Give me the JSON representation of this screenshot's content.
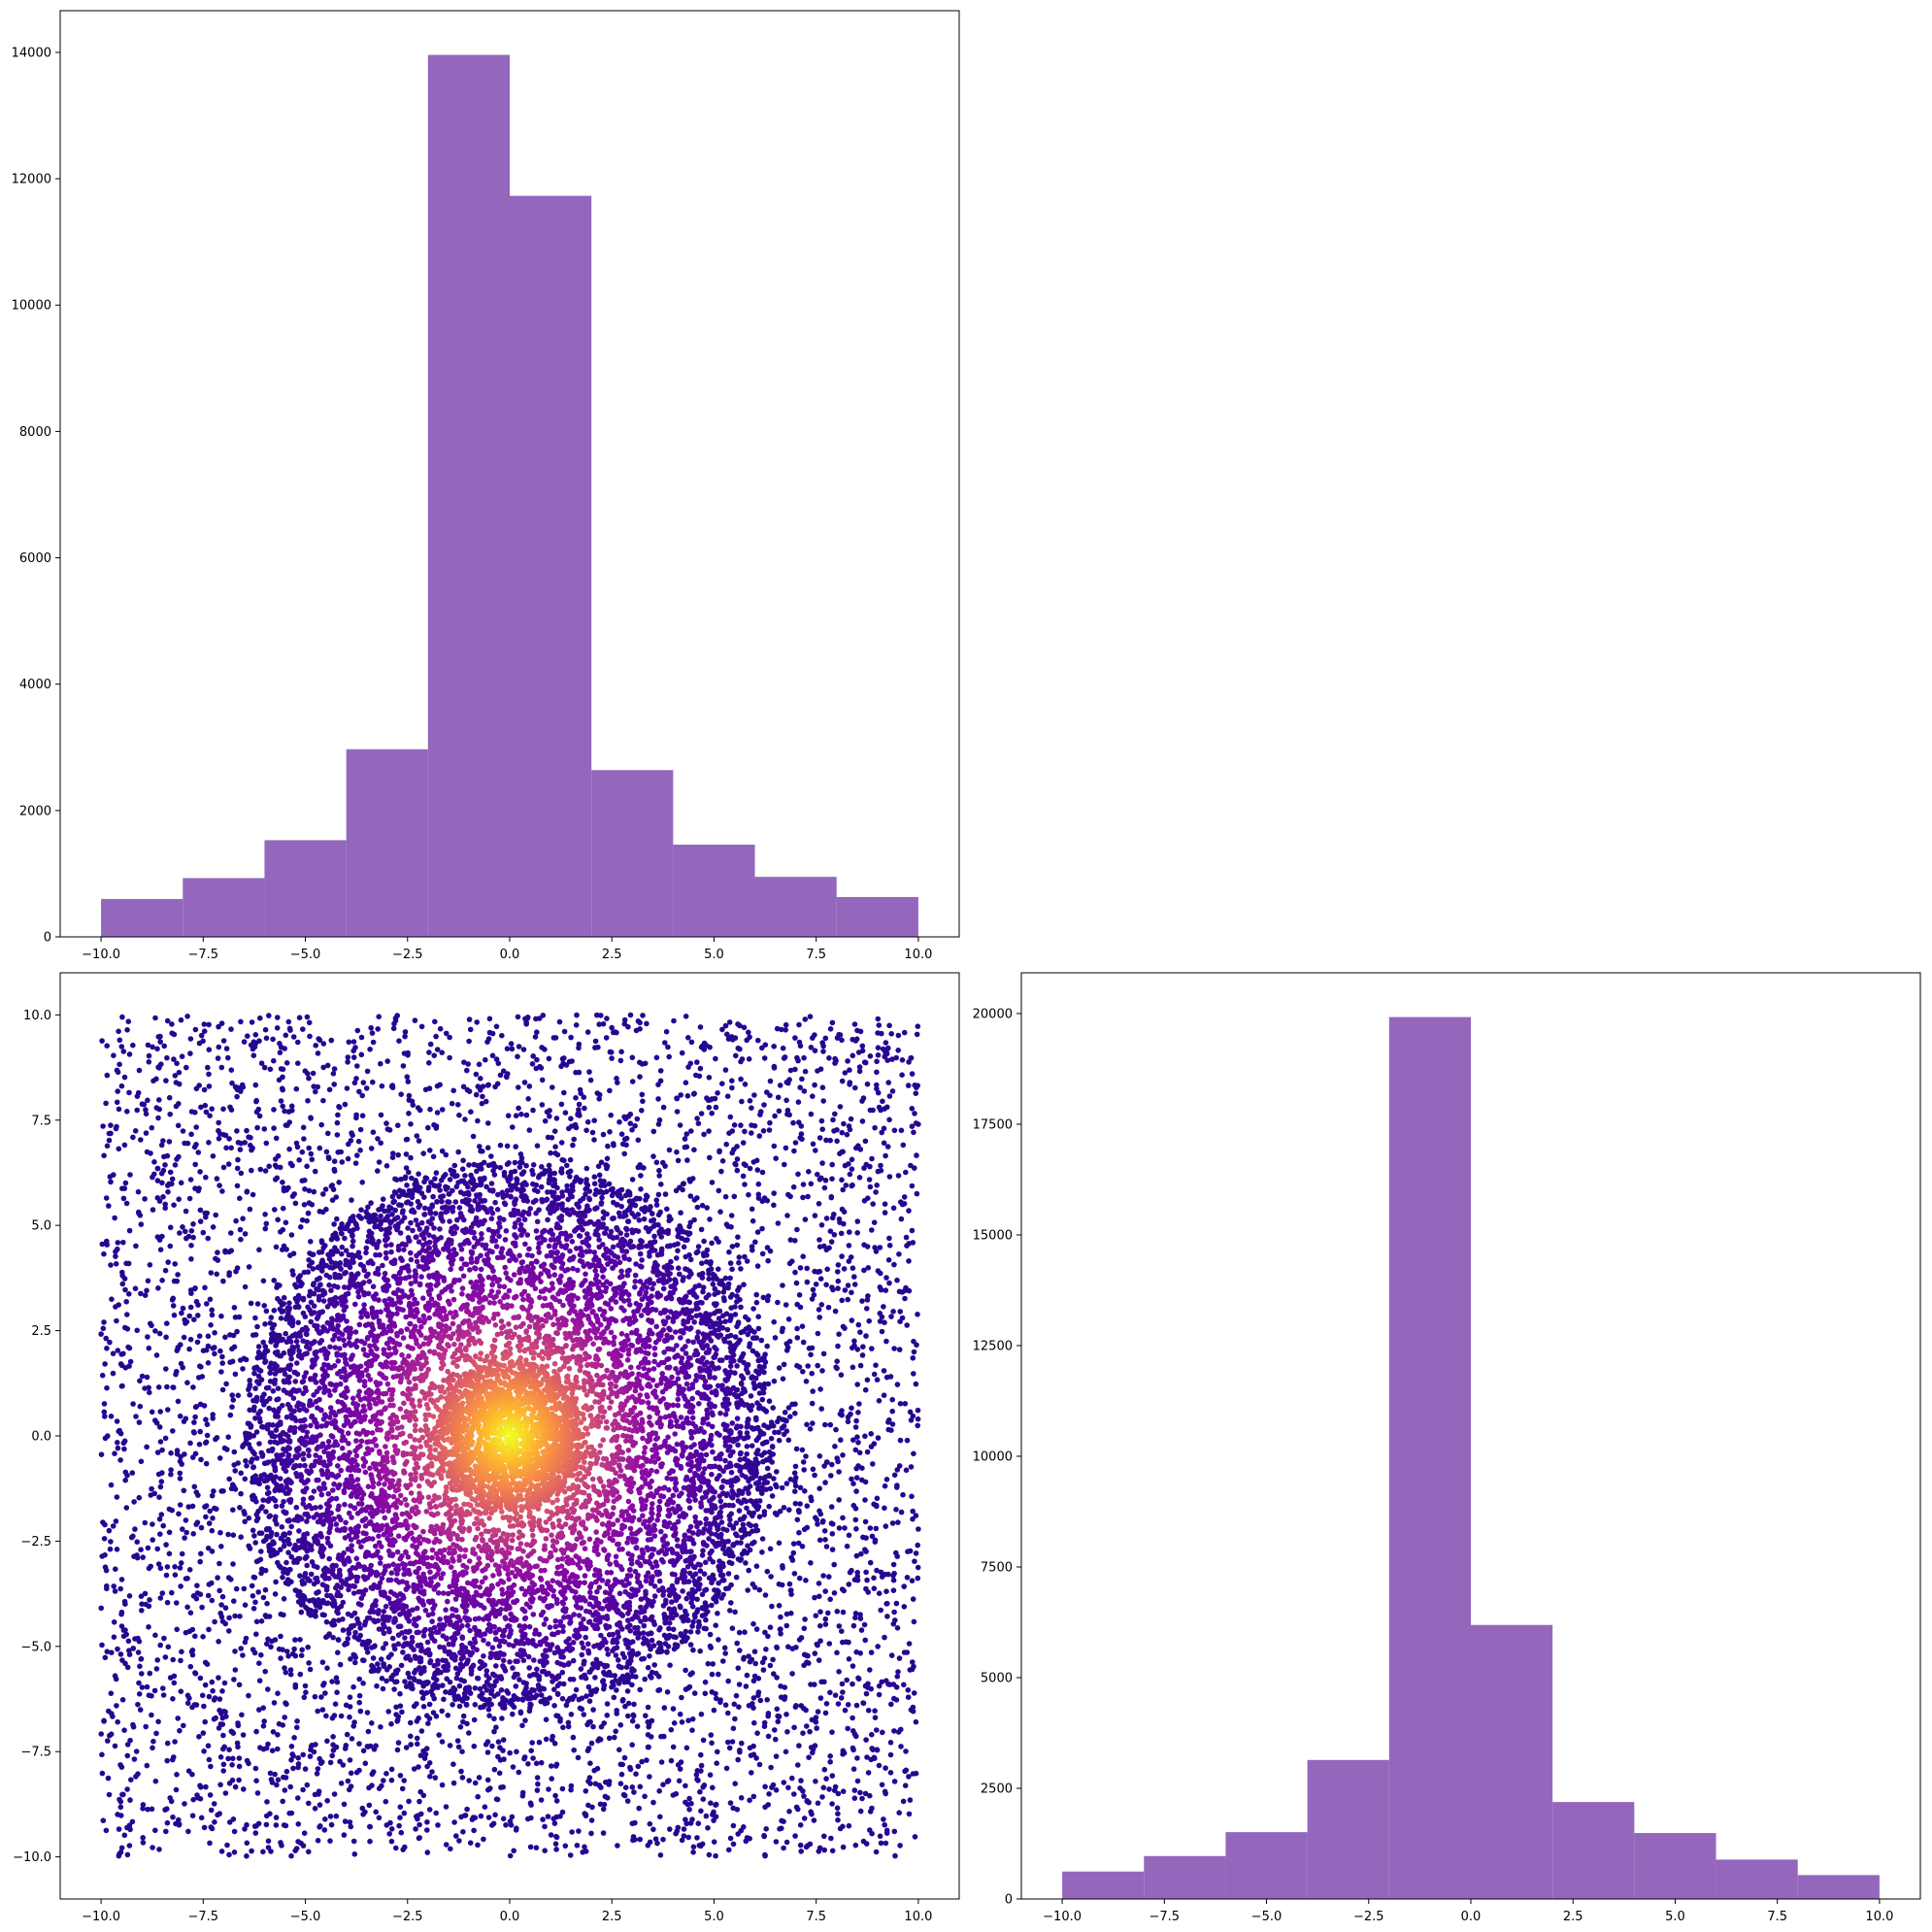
{
  "colors": {
    "bar_fill": "#9467bd",
    "axis": "#000000",
    "scatter_colormap": "plasma",
    "scatter_low": "#2a0593",
    "scatter_high": "#f0f921"
  },
  "chart_data": [
    {
      "id": "top-left",
      "type": "bar",
      "histogram": true,
      "bin_edges": [
        -10,
        -8,
        -6,
        -4,
        -2,
        0,
        2,
        4,
        6,
        8,
        10
      ],
      "values": [
        600,
        930,
        1530,
        2970,
        13960,
        11730,
        2640,
        1460,
        950,
        630
      ],
      "xlim": [
        -11,
        11
      ],
      "ylim": [
        0,
        14660
      ],
      "x_ticks": [
        -10,
        -7.5,
        -5,
        -2.5,
        0,
        2.5,
        5,
        7.5,
        10
      ],
      "x_tick_labels": [
        "−10.0",
        "−7.5",
        "−5.0",
        "−2.5",
        "0.0",
        "2.5",
        "5.0",
        "7.5",
        "10.0"
      ],
      "y_ticks": [
        0,
        2000,
        4000,
        6000,
        8000,
        10000,
        12000,
        14000
      ],
      "y_tick_labels": [
        "0",
        "2000",
        "4000",
        "6000",
        "8000",
        "10000",
        "12000",
        "14000"
      ],
      "title": "",
      "xlabel": "",
      "ylabel": "",
      "grid": false
    },
    {
      "id": "bottom-left",
      "type": "scatter",
      "points": {
        "count": 12000,
        "distribution": "mixture of a uniform field over [-10,10]x[-10,10] and a radially concentrated cluster around the origin",
        "center": [
          0,
          0
        ],
        "x_range": [
          -10,
          10
        ],
        "y_range": [
          -10,
          10
        ]
      },
      "color_encoding": "point color by density: dark violet at the edges, pink/orange, yellow at the center",
      "xlim": [
        -11,
        11
      ],
      "ylim": [
        -11,
        11
      ],
      "x_ticks": [
        -10,
        -7.5,
        -5,
        -2.5,
        0,
        2.5,
        5,
        7.5,
        10
      ],
      "x_tick_labels": [
        "−10.0",
        "−7.5",
        "−5.0",
        "−2.5",
        "0.0",
        "2.5",
        "5.0",
        "7.5",
        "10.0"
      ],
      "y_ticks": [
        -10,
        -7.5,
        -5,
        -2.5,
        0,
        2.5,
        5,
        7.5,
        10
      ],
      "y_tick_labels": [
        "−10.0",
        "−7.5",
        "−5.0",
        "−2.5",
        "0.0",
        "2.5",
        "5.0",
        "7.5",
        "10.0"
      ],
      "title": "",
      "xlabel": "",
      "ylabel": "",
      "grid": false
    },
    {
      "id": "bottom-right",
      "type": "bar",
      "histogram": true,
      "bin_edges": [
        -10,
        -8,
        -6,
        -4,
        -2,
        0,
        2,
        4,
        6,
        8,
        10
      ],
      "values": [
        620,
        970,
        1510,
        3140,
        19920,
        6190,
        2190,
        1490,
        890,
        540
      ],
      "xlim": [
        -11,
        11
      ],
      "ylim": [
        0,
        20920
      ],
      "x_ticks": [
        -10,
        -7.5,
        -5,
        -2.5,
        0,
        2.5,
        5,
        7.5,
        10
      ],
      "x_tick_labels": [
        "−10.0",
        "−7.5",
        "−5.0",
        "−2.5",
        "0.0",
        "2.5",
        "5.0",
        "7.5",
        "10.0"
      ],
      "y_ticks": [
        0,
        2500,
        5000,
        7500,
        10000,
        12500,
        15000,
        17500,
        20000
      ],
      "y_tick_labels": [
        "0",
        "2500",
        "5000",
        "7500",
        "10000",
        "12500",
        "15000",
        "17500",
        "20000"
      ],
      "title": "",
      "xlabel": "",
      "ylabel": "",
      "grid": false
    }
  ]
}
